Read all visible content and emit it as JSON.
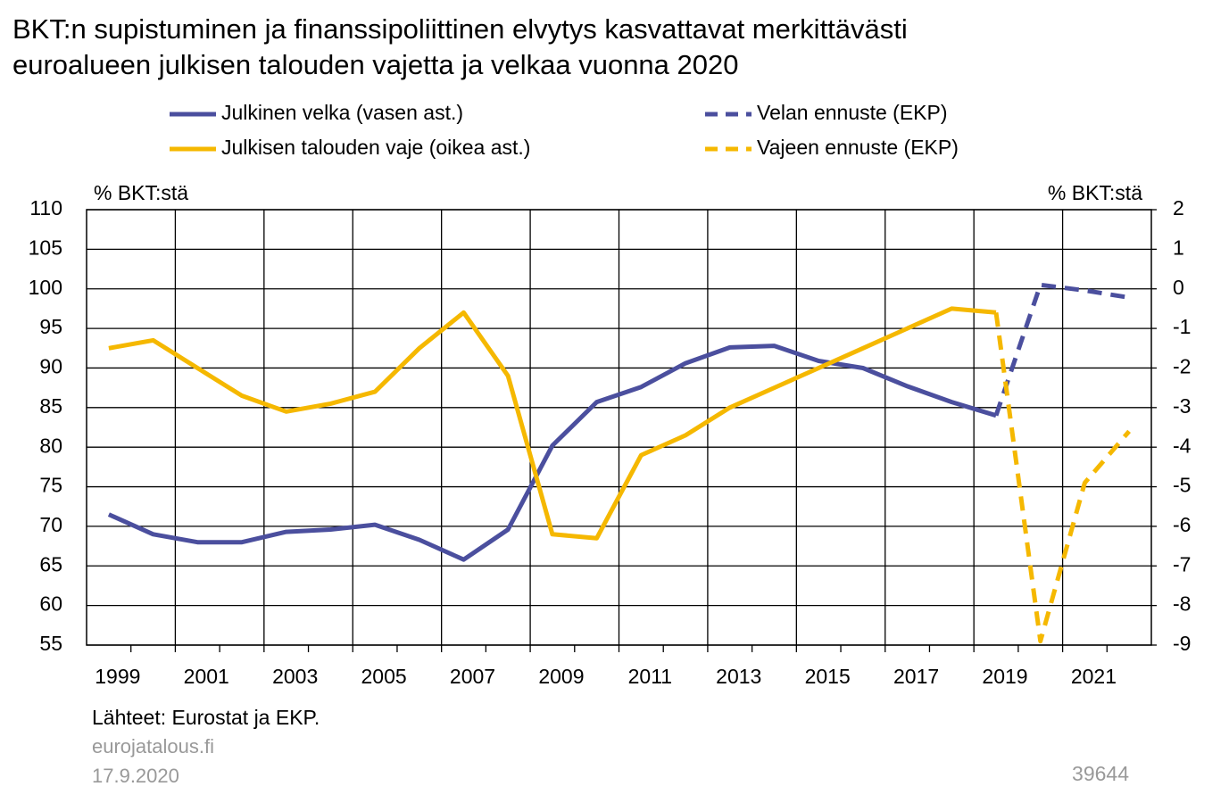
{
  "chart_data": {
    "type": "line",
    "title": [
      "BKT:n supistuminen ja finanssipoliittinen elvytys kasvattavat merkittävästi",
      "euroalueen julkisen talouden vajetta ja velkaa vuonna 2020"
    ],
    "y_label": "% BKT:stä",
    "y2_label": "% BKT:stä",
    "categories": [
      "1999",
      null,
      "2001",
      null,
      "2003",
      null,
      "2005",
      null,
      "2007",
      null,
      "2009",
      null,
      "2011",
      null,
      "2013",
      null,
      "2015",
      null,
      "2017",
      null,
      "2019",
      null,
      "2021",
      null
    ],
    "series": [
      {
        "name": "Julkinen velka (vasen ast.)",
        "color": "#4b4f9e",
        "dashed": false,
        "values": [
          71.5,
          69.0,
          68.0,
          68.0,
          69.3,
          69.6,
          70.2,
          68.3,
          65.8,
          69.6,
          80.2,
          85.7,
          87.6,
          90.6,
          92.6,
          92.8,
          90.9,
          90.0,
          87.7,
          85.7,
          84.0,
          null,
          null,
          null
        ]
      },
      {
        "name": "Velan ennuste (EKP)",
        "color": "#4b4f9e",
        "dashed": true,
        "values": [
          null,
          null,
          null,
          null,
          null,
          null,
          null,
          null,
          null,
          null,
          null,
          null,
          null,
          null,
          null,
          null,
          null,
          null,
          null,
          null,
          84.0,
          100.5,
          99.8,
          98.9
        ]
      },
      {
        "name": "Julkisen talouden vaje (oikea ast.)",
        "color": "#f5b800",
        "dashed": false,
        "axis": "y2",
        "values": [
          -1.5,
          -1.3,
          -2.0,
          -2.7,
          -3.1,
          -2.9,
          -2.6,
          -1.5,
          -0.6,
          -2.2,
          -6.2,
          -6.3,
          -4.2,
          -3.7,
          -3.0,
          -2.5,
          -2.0,
          -1.5,
          -1.0,
          -0.5,
          -0.6,
          null,
          null,
          null
        ]
      },
      {
        "name": "Vajeen ennuste (EKP)",
        "color": "#f5b800",
        "dashed": true,
        "axis": "y2",
        "values": [
          null,
          null,
          null,
          null,
          null,
          null,
          null,
          null,
          null,
          null,
          null,
          null,
          null,
          null,
          null,
          null,
          null,
          null,
          null,
          null,
          -0.6,
          -8.9,
          -4.9,
          -3.6
        ]
      }
    ],
    "ylim": [
      55,
      110
    ],
    "yticks": [
      55,
      60,
      65,
      70,
      75,
      80,
      85,
      90,
      95,
      100,
      105,
      110
    ],
    "y2lim": [
      -9,
      2
    ],
    "y2ticks": [
      -9,
      -8,
      -7,
      -6,
      -5,
      -4,
      -3,
      -2,
      -1,
      0,
      1,
      2
    ],
    "grid": true,
    "source": "Lähteet: Eurostat ja EKP.",
    "website": "eurojatalous.fi",
    "date": "17.9.2020",
    "id": "39644"
  }
}
